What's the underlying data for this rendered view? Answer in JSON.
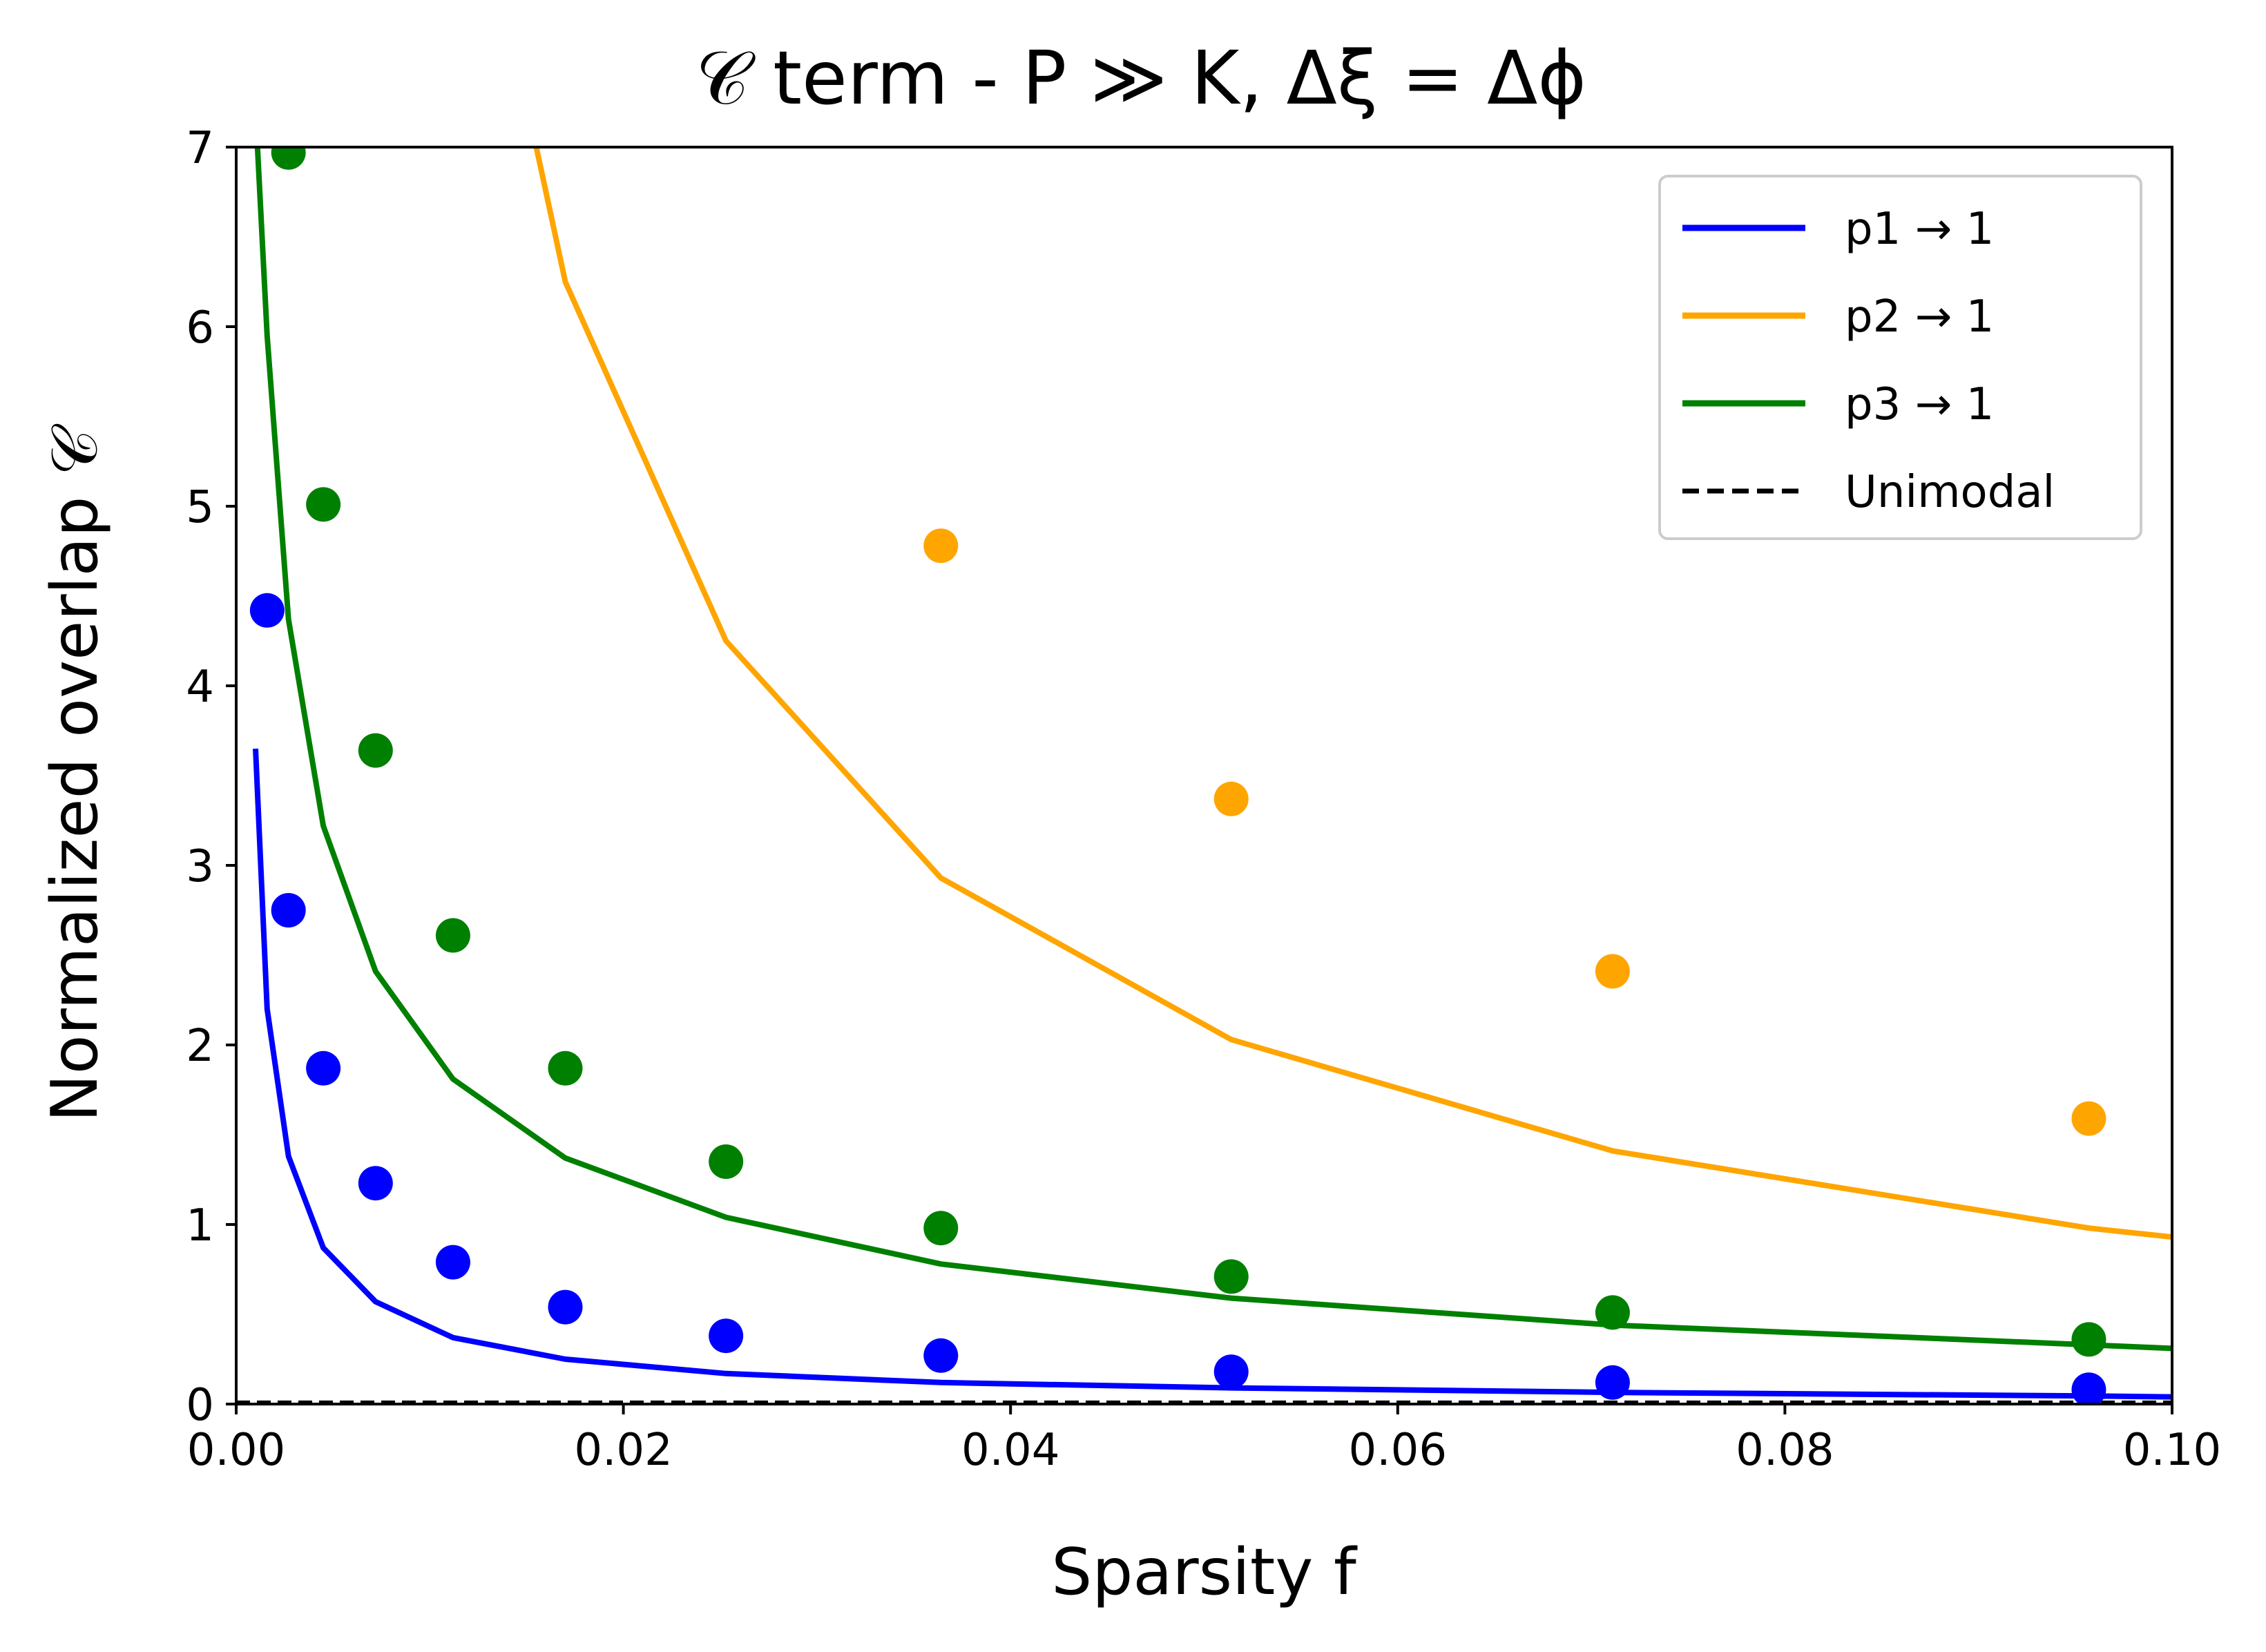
{
  "chart_data": {
    "type": "line",
    "title": "𝒞 term - P ≫ K, Δξ = Δϕ",
    "xlabel": "Sparsity f",
    "ylabel": "Normalized overlap 𝒞",
    "xlim": [
      0.0,
      0.1
    ],
    "ylim": [
      0,
      7
    ],
    "x_ticks": [
      "0.00",
      "0.02",
      "0.04",
      "0.06",
      "0.08",
      "0.10"
    ],
    "y_ticks": [
      "0",
      "1",
      "2",
      "3",
      "4",
      "5",
      "6",
      "7"
    ],
    "grid": false,
    "legend_position": "top-right",
    "series": [
      {
        "name": "p1 → 1",
        "color": "#0000ff",
        "line": {
          "x": [
            0.001,
            0.0016,
            0.0027,
            0.0045,
            0.0072,
            0.0112,
            0.017,
            0.0253,
            0.0364,
            0.0514,
            0.0711,
            0.0957,
            0.1
          ],
          "y": [
            3.65,
            2.2,
            1.38,
            0.87,
            0.57,
            0.37,
            0.25,
            0.17,
            0.12,
            0.09,
            0.065,
            0.045,
            0.04
          ]
        },
        "points": {
          "x": [
            0.0016,
            0.0027,
            0.0045,
            0.0072,
            0.0112,
            0.017,
            0.0253,
            0.0364,
            0.0514,
            0.0711,
            0.0957
          ],
          "y": [
            4.42,
            2.75,
            1.87,
            1.23,
            0.79,
            0.54,
            0.38,
            0.27,
            0.18,
            0.12,
            0.08
          ]
        }
      },
      {
        "name": "p2 → 1",
        "color": "#ffa500",
        "line": {
          "x": [
            0.0155,
            0.017,
            0.0253,
            0.0364,
            0.0514,
            0.0711,
            0.0957,
            0.1
          ],
          "y": [
            7.0,
            6.25,
            4.25,
            2.93,
            2.03,
            1.41,
            0.98,
            0.93
          ]
        },
        "points": {
          "x": [
            0.0364,
            0.0514,
            0.0711,
            0.0957
          ],
          "y": [
            4.78,
            3.37,
            2.41,
            1.59
          ]
        }
      },
      {
        "name": "p3 → 1",
        "color": "#008000",
        "line": {
          "x": [
            0.0011,
            0.0016,
            0.0027,
            0.0045,
            0.0072,
            0.0112,
            0.017,
            0.0253,
            0.0364,
            0.0514,
            0.0711,
            0.0957,
            0.1
          ],
          "y": [
            7.0,
            5.95,
            4.37,
            3.22,
            2.41,
            1.81,
            1.37,
            1.04,
            0.78,
            0.59,
            0.44,
            0.33,
            0.31
          ]
        },
        "points": {
          "x": [
            0.0027,
            0.0045,
            0.0072,
            0.0112,
            0.017,
            0.0253,
            0.0364,
            0.0514,
            0.0711,
            0.0957
          ],
          "y": [
            6.97,
            5.01,
            3.64,
            2.61,
            1.87,
            1.35,
            0.98,
            0.71,
            0.51,
            0.36
          ]
        }
      },
      {
        "name": "Unimodal",
        "color": "#000000",
        "dashed": true,
        "line": {
          "x": [
            0.0,
            0.1
          ],
          "y": [
            0.01,
            0.01
          ]
        }
      }
    ]
  }
}
